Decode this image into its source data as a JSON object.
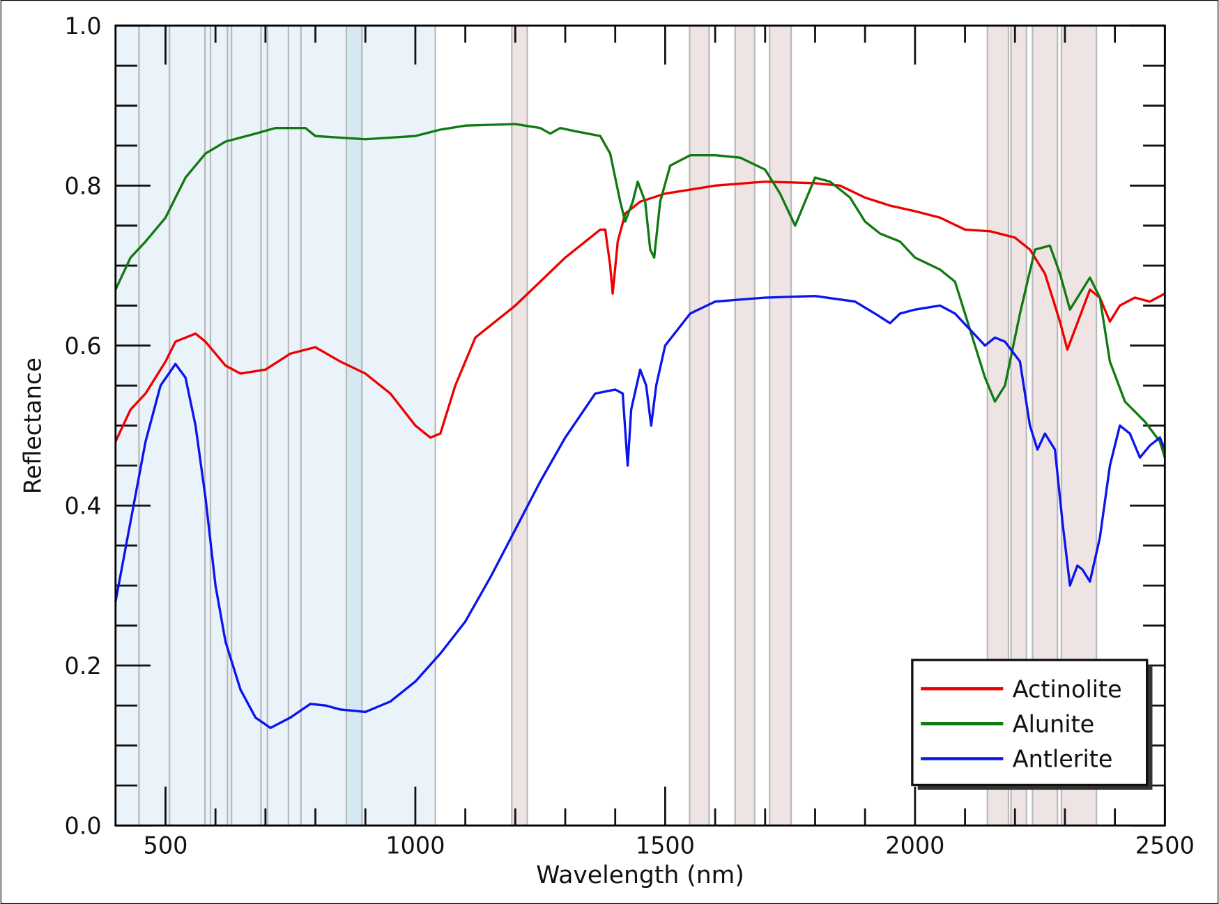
{
  "chart_data": {
    "type": "line",
    "title": "",
    "xlabel": "Wavelength (nm)",
    "ylabel": "Reflectance",
    "xlim": [
      400,
      2500
    ],
    "ylim": [
      0.0,
      1.0
    ],
    "x_ticks": [
      500,
      1000,
      1500,
      2000,
      2500
    ],
    "x_tick_labels": [
      "500",
      "1000",
      "1500",
      "2000",
      "2500"
    ],
    "y_ticks": [
      0.0,
      0.2,
      0.4,
      0.6,
      0.8,
      1.0
    ],
    "y_tick_labels": [
      "0.0",
      "0.2",
      "0.4",
      "0.6",
      "0.8",
      "1.0"
    ],
    "grid": false,
    "legend_position": "bottom-right",
    "shaded_regions": {
      "visible_region": {
        "range": [
          400,
          1040
        ],
        "color": "#eaf3f9"
      },
      "darker_blue_band": {
        "range": [
          862,
          893
        ],
        "color": "#d6e8f2"
      },
      "bands": [
        [
          1193,
          1224
        ],
        [
          1549,
          1588
        ],
        [
          1640,
          1679
        ],
        [
          1709,
          1752
        ],
        [
          2145,
          2187
        ],
        [
          2192,
          2223
        ],
        [
          2235,
          2285
        ],
        [
          2293,
          2363
        ]
      ],
      "band_color": "#efe4e4",
      "band_lines": [
        447,
        508,
        579,
        590,
        624,
        632,
        691,
        704,
        746,
        771,
        862,
        893,
        1040,
        1193,
        1224,
        1549,
        1588,
        1640,
        1679,
        1709,
        1752,
        2145,
        2187,
        2192,
        2223,
        2235,
        2285,
        2293,
        2363
      ],
      "line_color": "#b9b9b9"
    },
    "series": [
      {
        "name": "Actinolite",
        "color": "#ee0000",
        "points": [
          [
            400,
            0.48
          ],
          [
            430,
            0.52
          ],
          [
            460,
            0.54
          ],
          [
            500,
            0.58
          ],
          [
            520,
            0.605
          ],
          [
            560,
            0.615
          ],
          [
            580,
            0.605
          ],
          [
            620,
            0.575
          ],
          [
            650,
            0.565
          ],
          [
            700,
            0.57
          ],
          [
            750,
            0.59
          ],
          [
            800,
            0.598
          ],
          [
            850,
            0.58
          ],
          [
            900,
            0.565
          ],
          [
            950,
            0.54
          ],
          [
            1000,
            0.5
          ],
          [
            1030,
            0.485
          ],
          [
            1050,
            0.49
          ],
          [
            1080,
            0.55
          ],
          [
            1120,
            0.61
          ],
          [
            1200,
            0.65
          ],
          [
            1300,
            0.71
          ],
          [
            1370,
            0.745
          ],
          [
            1380,
            0.745
          ],
          [
            1390,
            0.7
          ],
          [
            1395,
            0.665
          ],
          [
            1405,
            0.73
          ],
          [
            1420,
            0.765
          ],
          [
            1450,
            0.78
          ],
          [
            1500,
            0.79
          ],
          [
            1600,
            0.8
          ],
          [
            1700,
            0.805
          ],
          [
            1800,
            0.803
          ],
          [
            1850,
            0.8
          ],
          [
            1900,
            0.785
          ],
          [
            1950,
            0.775
          ],
          [
            2000,
            0.768
          ],
          [
            2050,
            0.76
          ],
          [
            2100,
            0.745
          ],
          [
            2150,
            0.743
          ],
          [
            2200,
            0.735
          ],
          [
            2230,
            0.72
          ],
          [
            2260,
            0.69
          ],
          [
            2290,
            0.63
          ],
          [
            2305,
            0.595
          ],
          [
            2320,
            0.62
          ],
          [
            2350,
            0.67
          ],
          [
            2370,
            0.66
          ],
          [
            2390,
            0.63
          ],
          [
            2410,
            0.65
          ],
          [
            2440,
            0.66
          ],
          [
            2470,
            0.655
          ],
          [
            2500,
            0.665
          ]
        ]
      },
      {
        "name": "Alunite",
        "color": "#107a10",
        "points": [
          [
            400,
            0.67
          ],
          [
            430,
            0.71
          ],
          [
            460,
            0.73
          ],
          [
            500,
            0.76
          ],
          [
            540,
            0.81
          ],
          [
            580,
            0.84
          ],
          [
            620,
            0.855
          ],
          [
            680,
            0.865
          ],
          [
            720,
            0.872
          ],
          [
            780,
            0.872
          ],
          [
            800,
            0.862
          ],
          [
            850,
            0.86
          ],
          [
            900,
            0.858
          ],
          [
            1000,
            0.862
          ],
          [
            1050,
            0.87
          ],
          [
            1100,
            0.875
          ],
          [
            1200,
            0.877
          ],
          [
            1250,
            0.872
          ],
          [
            1270,
            0.865
          ],
          [
            1290,
            0.872
          ],
          [
            1320,
            0.868
          ],
          [
            1370,
            0.862
          ],
          [
            1390,
            0.84
          ],
          [
            1410,
            0.78
          ],
          [
            1420,
            0.755
          ],
          [
            1435,
            0.78
          ],
          [
            1445,
            0.805
          ],
          [
            1460,
            0.78
          ],
          [
            1470,
            0.72
          ],
          [
            1478,
            0.71
          ],
          [
            1490,
            0.78
          ],
          [
            1510,
            0.825
          ],
          [
            1550,
            0.838
          ],
          [
            1600,
            0.838
          ],
          [
            1650,
            0.835
          ],
          [
            1700,
            0.82
          ],
          [
            1730,
            0.79
          ],
          [
            1760,
            0.75
          ],
          [
            1780,
            0.78
          ],
          [
            1800,
            0.81
          ],
          [
            1830,
            0.805
          ],
          [
            1870,
            0.785
          ],
          [
            1900,
            0.755
          ],
          [
            1930,
            0.74
          ],
          [
            1970,
            0.73
          ],
          [
            2000,
            0.71
          ],
          [
            2050,
            0.695
          ],
          [
            2080,
            0.68
          ],
          [
            2110,
            0.62
          ],
          [
            2140,
            0.56
          ],
          [
            2160,
            0.53
          ],
          [
            2180,
            0.55
          ],
          [
            2210,
            0.64
          ],
          [
            2240,
            0.72
          ],
          [
            2270,
            0.725
          ],
          [
            2290,
            0.69
          ],
          [
            2310,
            0.645
          ],
          [
            2330,
            0.665
          ],
          [
            2350,
            0.685
          ],
          [
            2370,
            0.66
          ],
          [
            2390,
            0.58
          ],
          [
            2420,
            0.53
          ],
          [
            2460,
            0.505
          ],
          [
            2490,
            0.48
          ],
          [
            2500,
            0.46
          ]
        ]
      },
      {
        "name": "Antlerite",
        "color": "#0a14ee",
        "points": [
          [
            400,
            0.28
          ],
          [
            430,
            0.38
          ],
          [
            460,
            0.48
          ],
          [
            490,
            0.55
          ],
          [
            520,
            0.577
          ],
          [
            540,
            0.56
          ],
          [
            560,
            0.5
          ],
          [
            580,
            0.41
          ],
          [
            600,
            0.3
          ],
          [
            620,
            0.23
          ],
          [
            650,
            0.17
          ],
          [
            680,
            0.135
          ],
          [
            710,
            0.122
          ],
          [
            750,
            0.135
          ],
          [
            790,
            0.152
          ],
          [
            820,
            0.15
          ],
          [
            850,
            0.145
          ],
          [
            900,
            0.142
          ],
          [
            950,
            0.155
          ],
          [
            1000,
            0.18
          ],
          [
            1050,
            0.215
          ],
          [
            1100,
            0.255
          ],
          [
            1150,
            0.31
          ],
          [
            1200,
            0.37
          ],
          [
            1250,
            0.43
          ],
          [
            1300,
            0.485
          ],
          [
            1360,
            0.54
          ],
          [
            1400,
            0.545
          ],
          [
            1415,
            0.54
          ],
          [
            1425,
            0.45
          ],
          [
            1432,
            0.52
          ],
          [
            1450,
            0.57
          ],
          [
            1462,
            0.55
          ],
          [
            1472,
            0.5
          ],
          [
            1482,
            0.55
          ],
          [
            1500,
            0.6
          ],
          [
            1550,
            0.64
          ],
          [
            1600,
            0.655
          ],
          [
            1700,
            0.66
          ],
          [
            1800,
            0.662
          ],
          [
            1880,
            0.655
          ],
          [
            1920,
            0.64
          ],
          [
            1950,
            0.628
          ],
          [
            1970,
            0.64
          ],
          [
            2000,
            0.645
          ],
          [
            2050,
            0.65
          ],
          [
            2080,
            0.64
          ],
          [
            2110,
            0.62
          ],
          [
            2140,
            0.6
          ],
          [
            2160,
            0.61
          ],
          [
            2180,
            0.605
          ],
          [
            2210,
            0.58
          ],
          [
            2230,
            0.5
          ],
          [
            2245,
            0.47
          ],
          [
            2260,
            0.49
          ],
          [
            2280,
            0.47
          ],
          [
            2295,
            0.38
          ],
          [
            2310,
            0.3
          ],
          [
            2325,
            0.325
          ],
          [
            2335,
            0.32
          ],
          [
            2350,
            0.305
          ],
          [
            2370,
            0.36
          ],
          [
            2390,
            0.45
          ],
          [
            2410,
            0.5
          ],
          [
            2430,
            0.49
          ],
          [
            2450,
            0.46
          ],
          [
            2470,
            0.475
          ],
          [
            2490,
            0.485
          ],
          [
            2500,
            0.47
          ]
        ]
      }
    ]
  }
}
